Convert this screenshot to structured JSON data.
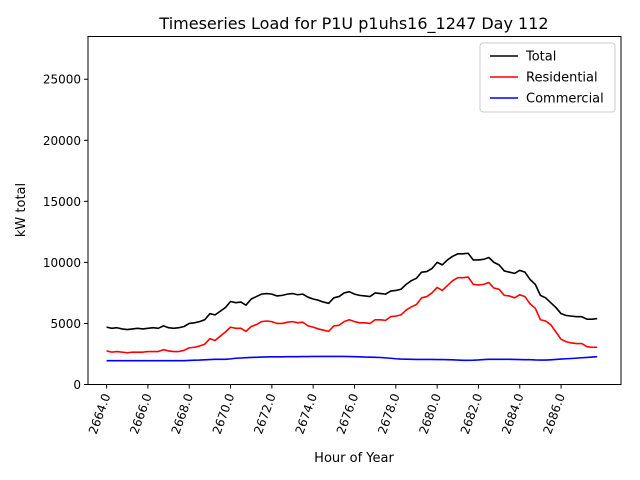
{
  "chart_data": {
    "type": "line",
    "title": "Timeseries Load for P1U p1uhs16_1247  Day 112",
    "xlabel": "Hour of Year",
    "ylabel": "kW total",
    "xlim": [
      2663.1,
      2688.9
    ],
    "ylim": [
      0,
      28500
    ],
    "xticks": [
      2664,
      2666,
      2668,
      2670,
      2672,
      2674,
      2676,
      2678,
      2680,
      2682,
      2684,
      2686
    ],
    "xtick_labels": [
      "2664.0",
      "2666.0",
      "2668.0",
      "2670.0",
      "2672.0",
      "2674.0",
      "2676.0",
      "2678.0",
      "2680.0",
      "2682.0",
      "2684.0",
      "2686.0"
    ],
    "yticks": [
      0,
      5000,
      10000,
      15000,
      20000,
      25000
    ],
    "ytick_labels": [
      "0",
      "5000",
      "10000",
      "15000",
      "20000",
      "25000"
    ],
    "grid": false,
    "legend_position": "top-right",
    "x": [
      2664.0,
      2664.25,
      2664.5,
      2664.75,
      2665.0,
      2665.25,
      2665.5,
      2665.75,
      2666.0,
      2666.25,
      2666.5,
      2666.75,
      2667.0,
      2667.25,
      2667.5,
      2667.75,
      2668.0,
      2668.25,
      2668.5,
      2668.75,
      2669.0,
      2669.25,
      2669.5,
      2669.75,
      2670.0,
      2670.25,
      2670.5,
      2670.75,
      2671.0,
      2671.25,
      2671.5,
      2671.75,
      2672.0,
      2672.25,
      2672.5,
      2672.75,
      2673.0,
      2673.25,
      2673.5,
      2673.75,
      2674.0,
      2674.25,
      2674.5,
      2674.75,
      2675.0,
      2675.25,
      2675.5,
      2675.75,
      2676.0,
      2676.25,
      2676.5,
      2676.75,
      2677.0,
      2677.25,
      2677.5,
      2677.75,
      2678.0,
      2678.25,
      2678.5,
      2678.75,
      2679.0,
      2679.25,
      2679.5,
      2679.75,
      2680.0,
      2680.25,
      2680.5,
      2680.75,
      2681.0,
      2681.25,
      2681.5,
      2681.75,
      2682.0,
      2682.25,
      2682.5,
      2682.75,
      2683.0,
      2683.25,
      2683.5,
      2683.75,
      2684.0,
      2684.25,
      2684.5,
      2684.75,
      2685.0,
      2685.25,
      2685.5,
      2685.75,
      2686.0,
      2686.25,
      2686.5,
      2686.75,
      2687.0,
      2687.25,
      2687.5,
      2687.75
    ],
    "series": [
      {
        "name": "Total",
        "color": "#000000",
        "values": [
          4700,
          4600,
          4650,
          4550,
          4500,
          4550,
          4600,
          4550,
          4600,
          4650,
          4600,
          4800,
          4650,
          4600,
          4650,
          4750,
          5000,
          5050,
          5150,
          5300,
          5800,
          5700,
          6000,
          6300,
          6800,
          6700,
          6750,
          6500,
          7000,
          7200,
          7400,
          7450,
          7400,
          7250,
          7300,
          7400,
          7450,
          7350,
          7400,
          7150,
          7000,
          6900,
          6750,
          6650,
          7100,
          7200,
          7500,
          7600,
          7400,
          7300,
          7250,
          7200,
          7500,
          7450,
          7400,
          7650,
          7700,
          7800,
          8200,
          8500,
          8700,
          9200,
          9250,
          9500,
          10000,
          9800,
          10200,
          10500,
          10700,
          10700,
          10750,
          10200,
          10200,
          10250,
          10400,
          10000,
          9800,
          9300,
          9200,
          9100,
          9350,
          9200,
          8600,
          8200,
          7300,
          7100,
          6700,
          6300,
          5800,
          5650,
          5600,
          5550,
          5550,
          5350,
          5350,
          5400
        ]
      },
      {
        "name": "Residential",
        "color": "#ff0000",
        "values": [
          2750,
          2650,
          2700,
          2650,
          2600,
          2650,
          2650,
          2650,
          2700,
          2700,
          2700,
          2850,
          2750,
          2700,
          2700,
          2800,
          3000,
          3050,
          3150,
          3300,
          3750,
          3600,
          3950,
          4300,
          4700,
          4600,
          4600,
          4350,
          4750,
          4900,
          5150,
          5200,
          5150,
          5000,
          5000,
          5100,
          5150,
          5050,
          5100,
          4800,
          4700,
          4550,
          4450,
          4350,
          4800,
          4850,
          5150,
          5300,
          5150,
          5050,
          5050,
          5000,
          5300,
          5300,
          5250,
          5550,
          5600,
          5700,
          6100,
          6350,
          6550,
          7100,
          7200,
          7500,
          7950,
          7700,
          8100,
          8500,
          8750,
          8750,
          8800,
          8200,
          8150,
          8200,
          8350,
          7900,
          7800,
          7300,
          7250,
          7100,
          7350,
          7200,
          6600,
          6250,
          5300,
          5200,
          4900,
          4300,
          3700,
          3500,
          3400,
          3350,
          3350,
          3100,
          3050,
          3050
        ]
      },
      {
        "name": "Commercial",
        "color": "#0000ff",
        "values": [
          1950,
          1950,
          1950,
          1950,
          1950,
          1950,
          1950,
          1950,
          1950,
          1950,
          1950,
          1950,
          1950,
          1950,
          1950,
          1950,
          1970,
          1990,
          2000,
          2020,
          2040,
          2060,
          2060,
          2060,
          2100,
          2150,
          2170,
          2200,
          2220,
          2230,
          2250,
          2260,
          2270,
          2270,
          2270,
          2280,
          2280,
          2280,
          2290,
          2290,
          2300,
          2300,
          2300,
          2300,
          2300,
          2300,
          2300,
          2290,
          2280,
          2270,
          2250,
          2240,
          2230,
          2210,
          2180,
          2150,
          2110,
          2080,
          2070,
          2060,
          2050,
          2050,
          2050,
          2050,
          2040,
          2040,
          2030,
          2020,
          2000,
          1980,
          1980,
          1990,
          2010,
          2040,
          2060,
          2060,
          2060,
          2060,
          2060,
          2050,
          2040,
          2030,
          2030,
          2010,
          2000,
          2000,
          2020,
          2050,
          2080,
          2110,
          2130,
          2160,
          2190,
          2220,
          2250,
          2280
        ]
      }
    ]
  }
}
